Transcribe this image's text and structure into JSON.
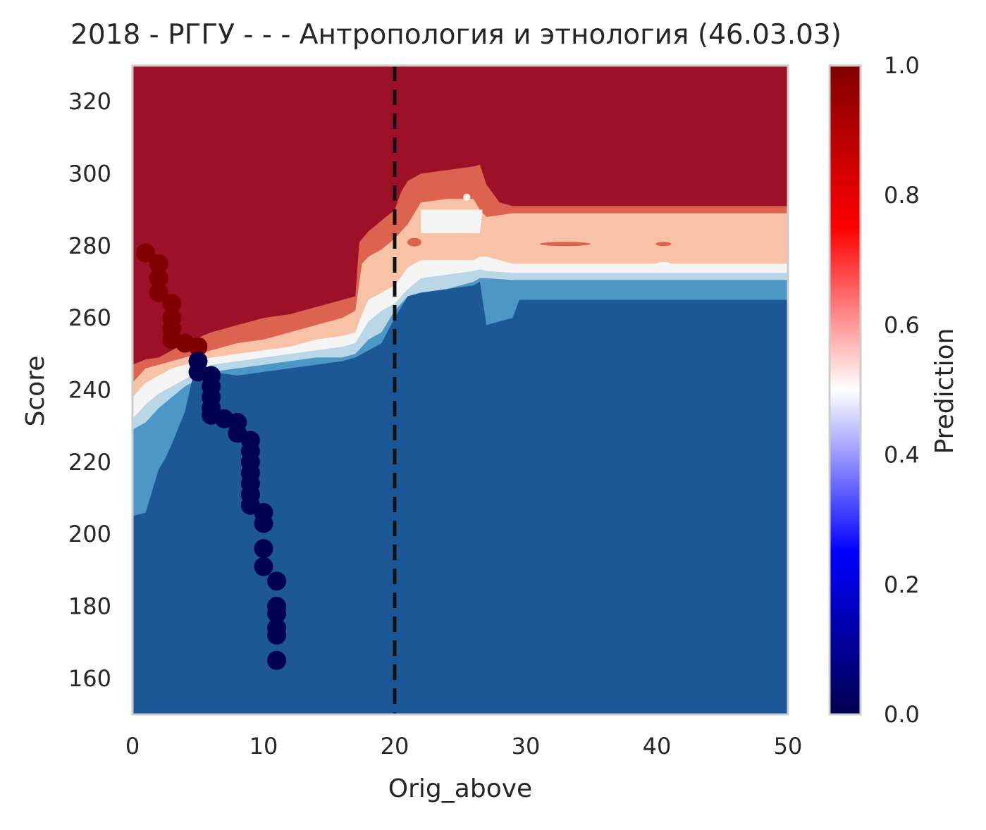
{
  "chart_data": {
    "type": "heatmap",
    "title": "2018 - РГГУ - - - Антропология и этнология (46.03.03)",
    "xlabel": "Orig_above",
    "ylabel": "Score",
    "xlim": [
      0,
      50
    ],
    "ylim": [
      150,
      330
    ],
    "xticks": [
      "0",
      "10",
      "20",
      "30",
      "40",
      "50"
    ],
    "yticks": [
      "160",
      "180",
      "200",
      "220",
      "240",
      "260",
      "280",
      "300",
      "320"
    ],
    "grid": false,
    "colorbar": {
      "label": "Prediction",
      "range": [
        0.0,
        1.0
      ],
      "colormap": "seismic",
      "ticks": [
        "0.0",
        "0.2",
        "0.4",
        "0.6",
        "0.8",
        "1.0"
      ]
    },
    "contour_levels": [
      {
        "range": "0.9-1.0",
        "color": "#9c1127"
      },
      {
        "range": "0.8-0.9",
        "color": "#db6350"
      },
      {
        "range": "0.6-0.8",
        "color": "#f8c2a7"
      },
      {
        "range": "0.5-0.6",
        "color": "#f5f5f5"
      },
      {
        "range": "0.4-0.5",
        "color": "#bad7e8"
      },
      {
        "range": "0.2-0.4",
        "color": "#4c97c6"
      },
      {
        "range": "0.0-0.2",
        "color": "#1c5796"
      }
    ],
    "threshold_line": {
      "x": 20,
      "style": "dashed",
      "color": "#111111"
    },
    "series": [
      {
        "color": "#800000",
        "prediction": 1,
        "points": [
          [
            1,
            278
          ],
          [
            2,
            275
          ],
          [
            2,
            271
          ],
          [
            2,
            267
          ],
          [
            3,
            264
          ],
          [
            3,
            260
          ],
          [
            3,
            257
          ],
          [
            3,
            254
          ],
          [
            4,
            253
          ],
          [
            5,
            252
          ]
        ]
      },
      {
        "color": "#000050",
        "prediction": 0,
        "points": [
          [
            5,
            248
          ],
          [
            5,
            245
          ],
          [
            6,
            244
          ],
          [
            6,
            241
          ],
          [
            6,
            238
          ],
          [
            6,
            235
          ],
          [
            6,
            233
          ],
          [
            7,
            232
          ],
          [
            8,
            231
          ],
          [
            8,
            228
          ],
          [
            9,
            226
          ],
          [
            9,
            223
          ],
          [
            9,
            220
          ],
          [
            9,
            217
          ],
          [
            9,
            214
          ],
          [
            9,
            211
          ],
          [
            9,
            208
          ],
          [
            10,
            206
          ],
          [
            10,
            203
          ],
          [
            10,
            196
          ],
          [
            10,
            191
          ],
          [
            11,
            187
          ],
          [
            11,
            180
          ],
          [
            11,
            178
          ],
          [
            11,
            174
          ],
          [
            11,
            172
          ],
          [
            11,
            165
          ]
        ]
      }
    ]
  }
}
